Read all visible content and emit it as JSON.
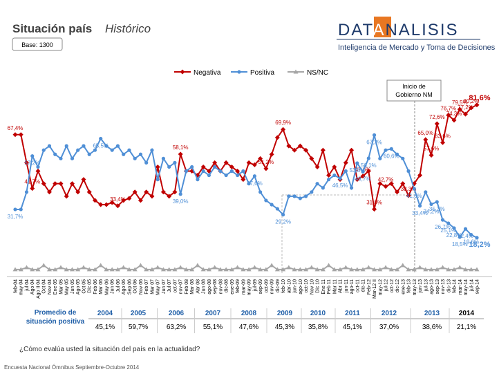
{
  "header": {
    "title": "Situación país",
    "title_italic": "Histórico",
    "base": "Base: 1300",
    "logo": [
      "DAT",
      "A",
      "NALISIS"
    ],
    "tagline": "Inteligencia de Mercado y Toma de Decisiones"
  },
  "chart_data": {
    "type": "line",
    "categories": [
      "feb-04",
      "may 04",
      "jul 04",
      "Ago 04",
      "Ago II 04",
      "Oct 04",
      "Nov 04",
      "Ene 05",
      "Mar 05",
      "May 05",
      "Jun 05",
      "Ago 05",
      "Oct 05",
      "Dic 05",
      "Feb 06",
      "Mar 06",
      "May 06",
      "Jun 06",
      "Jul 06",
      "Ago 06",
      "Sep 06",
      "Oct 06",
      "Nov 06",
      "Feb 07",
      "Mar 07",
      "May 07",
      "Jun 07",
      "Jul 07",
      "oct-07",
      "nov-07",
      "Feb 08",
      "Mar 08",
      "Abr 08",
      "Jun 08",
      "ago-08",
      "sep-08",
      "nov-08",
      "dic-08",
      "ene-09",
      "feb-09",
      "mar-09",
      "may-09",
      "jul-09",
      "sep-09",
      "oct-09",
      "nov-09",
      "dic-09",
      "feb-10",
      "abr-10",
      "jun-10",
      "ago-10",
      "oct-10",
      "Nov 10",
      "Dic 10",
      "Ene 11",
      "Feb 11",
      "Mar 11",
      "Abr 11",
      "jun-11",
      "ago-11",
      "oct-11",
      "dic-11",
      "Feb-12",
      "Mar-12 II",
      "may-12",
      "jul-12",
      "oct-12",
      "dic-12",
      "ene-13",
      "feb-13",
      "may-13",
      "jun-13",
      "jul-13",
      "ago-13",
      "sep-13",
      "nov-13",
      "dic-13",
      "feb-14",
      "mar-14",
      "may-14",
      "jul-14",
      "sep-14"
    ],
    "ylim": [
      0,
      100
    ],
    "series": [
      {
        "name": "Negativa",
        "color": "#c00000",
        "values": [
          67.4,
          67.4,
          54,
          41.7,
          50,
          44,
          40,
          44,
          44,
          38,
          44,
          40,
          46,
          40,
          36,
          34,
          34,
          35,
          33.4,
          36,
          37,
          40,
          36,
          40,
          38,
          52,
          40,
          38,
          40,
          58.1,
          50,
          50,
          48,
          52,
          50,
          54,
          50,
          54,
          52,
          50,
          46,
          54,
          53,
          56,
          51.2,
          58,
          66,
          69.9,
          62,
          60,
          62,
          60,
          56,
          52,
          60,
          48,
          52,
          46,
          54,
          60,
          46,
          47.6,
          50,
          31.8,
          44,
          42.7,
          44,
          40,
          44,
          38.3,
          44,
          48,
          65,
          57.6,
          72.6,
          63.6,
          76.7,
          74.3,
          79.5,
          77.2,
          80.2,
          81.6
        ],
        "value_labels": [
          "67,4%",
          null,
          null,
          "41,7%",
          null,
          null,
          null,
          null,
          null,
          null,
          null,
          null,
          null,
          null,
          null,
          null,
          null,
          null,
          "33,4%",
          null,
          null,
          null,
          null,
          null,
          null,
          null,
          null,
          null,
          null,
          "58,1%",
          null,
          null,
          null,
          null,
          null,
          null,
          null,
          null,
          null,
          null,
          null,
          null,
          null,
          null,
          "51,2%",
          null,
          null,
          "69,9%",
          null,
          null,
          null,
          null,
          null,
          null,
          null,
          null,
          null,
          null,
          null,
          null,
          null,
          "47,6%",
          null,
          "31,8%",
          null,
          "42,7%",
          null,
          null,
          null,
          "38,3%",
          null,
          null,
          "65,0%",
          "57,6%",
          "72,6%",
          "63,6%",
          "76,7%",
          "74,3%",
          "79,5%",
          "77,2%",
          "80,2%",
          "81,6%"
        ]
      },
      {
        "name": "Positiva",
        "color": "#4f8fd6",
        "values": [
          31.7,
          31.7,
          40,
          57.2,
          52,
          60,
          62,
          58,
          56,
          62,
          56,
          60,
          62,
          58,
          60,
          65.5,
          62,
          60,
          62,
          58,
          60,
          56,
          58,
          54,
          60,
          46,
          56,
          52,
          54,
          39,
          50,
          52,
          46,
          50,
          48,
          52,
          50,
          48,
          50,
          48,
          50,
          44,
          47.6,
          40,
          36,
          34,
          32,
          29.2,
          38,
          38,
          37,
          38,
          40,
          44,
          42,
          46,
          48,
          46.5,
          50,
          42,
          53.8,
          49.7,
          56.1,
          67.2,
          56,
          60,
          60.6,
          58,
          56,
          50,
          41.6,
          33.4,
          40,
          34.2,
          35.3,
          26.7,
          25.1,
          22.8,
          18.5,
          22.4,
          19.6,
          18.2
        ],
        "value_labels": [
          "31,7%",
          null,
          null,
          "57,2%",
          null,
          null,
          null,
          null,
          null,
          null,
          null,
          null,
          null,
          null,
          null,
          "65,5%",
          null,
          null,
          null,
          null,
          null,
          null,
          null,
          null,
          null,
          null,
          null,
          null,
          null,
          "39,0%",
          null,
          null,
          null,
          null,
          null,
          null,
          null,
          null,
          null,
          null,
          null,
          null,
          "47,6%",
          null,
          null,
          null,
          null,
          "29,2%",
          null,
          null,
          null,
          null,
          null,
          null,
          null,
          null,
          null,
          "46,5%",
          null,
          null,
          "53,8%",
          "49,7%",
          "56,1%",
          "67,2%",
          null,
          null,
          "60,6%",
          null,
          null,
          null,
          "41,6%",
          "33,4%",
          null,
          "34,2%",
          "35,3%",
          "26,7%",
          "25,1%",
          "22,8%",
          "18,5%",
          "22,4%",
          "19,6%",
          "18,2%"
        ]
      },
      {
        "name": "NS/NC",
        "color": "#a6a6a6",
        "values": [
          3,
          3,
          4,
          3,
          3,
          5,
          3,
          3,
          4,
          3,
          3,
          3,
          4,
          3,
          3,
          5,
          3,
          3,
          3,
          4,
          3,
          3,
          5,
          3,
          3,
          4,
          3,
          3,
          3,
          4,
          3,
          3,
          5,
          3,
          3,
          4,
          3,
          3,
          3,
          4,
          3,
          3,
          4,
          3,
          3,
          5,
          3,
          3,
          4,
          3,
          3,
          3,
          4,
          3,
          3,
          5,
          3,
          3,
          4,
          3,
          3,
          3,
          4,
          3,
          3,
          4,
          3,
          3,
          5,
          3,
          3,
          4,
          3,
          3,
          3,
          4,
          3,
          3,
          4,
          3,
          3,
          3
        ]
      }
    ],
    "annotation": [
      "Inicio de",
      "Gobierno NM"
    ]
  },
  "table": {
    "label": [
      "Promedio de",
      "situación positiva"
    ],
    "years": [
      "2004",
      "2005",
      "2006",
      "2007",
      "2008",
      "2009",
      "2010",
      "2011",
      "2012",
      "2013",
      "2014"
    ],
    "values": [
      "45,1%",
      "59,7%",
      "63,2%",
      "55,1%",
      "47,6%",
      "45,3%",
      "35,8%",
      "45,1%",
      "37,0%",
      "38,6%",
      "21,1%"
    ]
  },
  "question": "¿Cómo evalúa usted la situación del país en la actualidad?",
  "footer": "Encuesta Nacional Ómnibus Septiembre-Octubre 2014"
}
